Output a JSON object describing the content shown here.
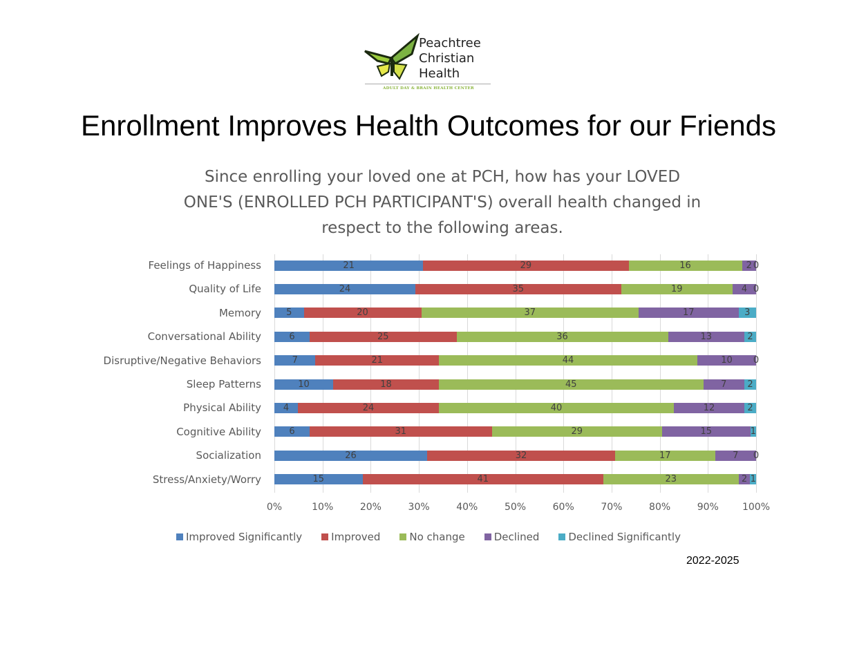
{
  "logo": {
    "line1": "Peachtree",
    "line2": "Christian",
    "line3": "Health",
    "tagline": "ADULT DAY & BRAIN HEALTH CENTER"
  },
  "page_title": "Enrollment Improves Health Outcomes for our Friends",
  "date_range": "2022-2025",
  "chart_data": {
    "type": "bar",
    "orientation": "horizontal",
    "stacked": "percent",
    "title": "Since enrolling your loved one at PCH, how has your LOVED ONE'S (ENROLLED PCH PARTICIPANT'S) overall health changed in respect to the following areas.",
    "title_lines": [
      "Since enrolling your loved one at PCH, how has your LOVED",
      "ONE'S (ENROLLED PCH PARTICIPANT'S) overall health changed in",
      "respect to the following areas."
    ],
    "xlabel": "",
    "ylabel": "",
    "xlim": [
      0,
      100
    ],
    "x_ticks": [
      "0%",
      "10%",
      "20%",
      "30%",
      "40%",
      "50%",
      "60%",
      "70%",
      "80%",
      "90%",
      "100%"
    ],
    "grid": true,
    "legend_position": "bottom",
    "categories": [
      "Feelings of Happiness",
      "Quality of Life",
      "Memory",
      "Conversational Ability",
      "Disruptive/Negative Behaviors",
      "Sleep Patterns",
      "Physical Ability",
      "Cognitive Ability",
      "Socialization",
      "Stress/Anxiety/Worry"
    ],
    "series": [
      {
        "name": "Improved Significantly",
        "color": "#4f81bd",
        "values": [
          21,
          24,
          5,
          6,
          7,
          10,
          4,
          6,
          26,
          15
        ]
      },
      {
        "name": "Improved",
        "color": "#c0504d",
        "values": [
          29,
          35,
          20,
          25,
          21,
          18,
          24,
          31,
          32,
          41
        ]
      },
      {
        "name": "No change",
        "color": "#9bbb59",
        "values": [
          16,
          19,
          37,
          36,
          44,
          45,
          40,
          29,
          17,
          23
        ]
      },
      {
        "name": "Declined",
        "color": "#8064a2",
        "values": [
          2,
          4,
          17,
          13,
          10,
          7,
          12,
          15,
          7,
          2
        ]
      },
      {
        "name": "Declined Significantly",
        "color": "#4bacc6",
        "values": [
          0,
          0,
          3,
          2,
          0,
          2,
          2,
          1,
          0,
          1
        ]
      }
    ]
  }
}
